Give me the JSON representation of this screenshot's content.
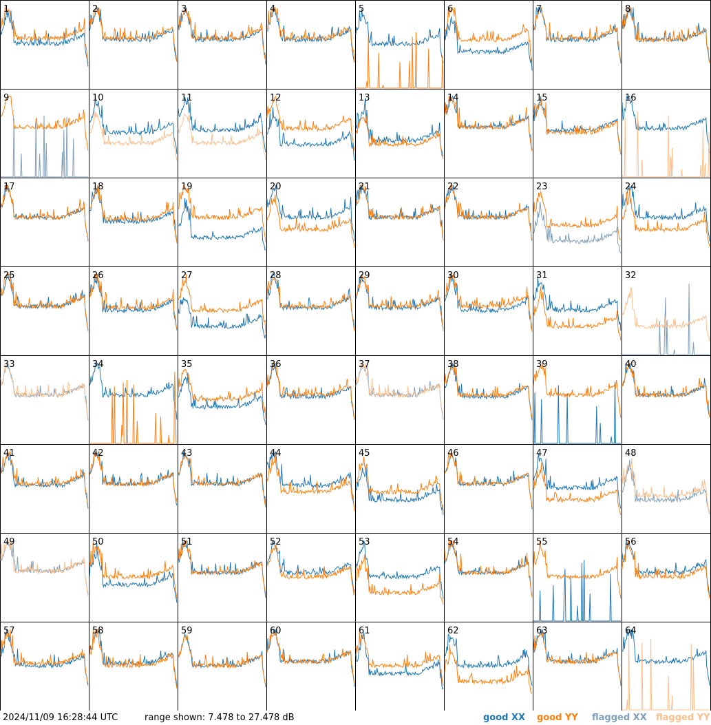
{
  "footer": {
    "timestamp": "2024/11/09 16:28:44 UTC",
    "range_text": "range shown: 7.478 to 27.478 dB"
  },
  "legend": [
    {
      "label": "good XX",
      "color": "#1f77b4"
    },
    {
      "label": "good YY",
      "color": "#ff7f0e"
    },
    {
      "label": "flagged XX",
      "color": "#7f9fba"
    },
    {
      "label": "flagged YY",
      "color": "#fbbf8e"
    }
  ],
  "chart_data": {
    "type": "line",
    "description_grid": "8x8 small multiples of antenna spectra",
    "ylim": [
      7.478,
      27.478
    ],
    "yunit": "dB",
    "panels": [
      {
        "id": "1",
        "xx": "good",
        "yy": "good",
        "xx_level": 0.55,
        "yy_level": 0.62,
        "note": "yy dips then falls at end"
      },
      {
        "id": "2",
        "xx": "good",
        "yy": "good",
        "xx_level": 0.6,
        "yy_level": 0.62
      },
      {
        "id": "3",
        "xx": "good",
        "yy": "good",
        "xx_level": 0.6,
        "yy_level": 0.62
      },
      {
        "id": "4",
        "xx": "good",
        "yy": "good",
        "xx_level": 0.6,
        "yy_level": 0.62
      },
      {
        "id": "5",
        "xx": "good",
        "yy": "good",
        "xx_level": 0.55,
        "yy_level": 0.0,
        "note": "yy near floor"
      },
      {
        "id": "6",
        "xx": "good",
        "yy": "good",
        "xx_level": 0.45,
        "yy_level": 0.6
      },
      {
        "id": "7",
        "xx": "good",
        "yy": "good",
        "xx_level": 0.6,
        "yy_level": 0.62
      },
      {
        "id": "8",
        "xx": "good",
        "yy": "good",
        "xx_level": 0.6,
        "yy_level": 0.6
      },
      {
        "id": "9",
        "xx": "flagged",
        "yy": "good",
        "xx_level": 0.0,
        "yy_level": 0.62
      },
      {
        "id": "10",
        "xx": "good",
        "yy": "flagged",
        "xx_level": 0.55,
        "yy_level": 0.42
      },
      {
        "id": "11",
        "xx": "good",
        "yy": "flagged",
        "xx_level": 0.58,
        "yy_level": 0.42
      },
      {
        "id": "12",
        "xx": "good",
        "yy": "good",
        "xx_level": 0.4,
        "yy_level": 0.6
      },
      {
        "id": "13",
        "xx": "good",
        "yy": "good",
        "xx_level": 0.45,
        "yy_level": 0.4
      },
      {
        "id": "14",
        "xx": "good",
        "yy": "good",
        "xx_level": 0.62,
        "yy_level": 0.62
      },
      {
        "id": "15",
        "xx": "good",
        "yy": "good",
        "xx_level": 0.58,
        "yy_level": 0.55
      },
      {
        "id": "16",
        "xx": "good",
        "yy": "flagged",
        "xx_level": 0.6,
        "yy_level": 0.0
      },
      {
        "id": "17",
        "xx": "good",
        "yy": "good",
        "xx_level": 0.6,
        "yy_level": 0.6
      },
      {
        "id": "18",
        "xx": "good",
        "yy": "good",
        "xx_level": 0.55,
        "yy_level": 0.58
      },
      {
        "id": "19",
        "xx": "good",
        "yy": "good",
        "xx_level": 0.35,
        "yy_level": 0.6
      },
      {
        "id": "20",
        "xx": "good",
        "yy": "good",
        "xx_level": 0.6,
        "yy_level": 0.45
      },
      {
        "id": "21",
        "xx": "good",
        "yy": "good",
        "xx_level": 0.6,
        "yy_level": 0.6
      },
      {
        "id": "22",
        "xx": "good",
        "yy": "good",
        "xx_level": 0.6,
        "yy_level": 0.6
      },
      {
        "id": "23",
        "xx": "flagged",
        "yy": "good",
        "xx_level": 0.3,
        "yy_level": 0.5
      },
      {
        "id": "24",
        "xx": "good",
        "yy": "good",
        "xx_level": 0.6,
        "yy_level": 0.45
      },
      {
        "id": "25",
        "xx": "good",
        "yy": "good",
        "xx_level": 0.6,
        "yy_level": 0.6
      },
      {
        "id": "26",
        "xx": "good",
        "yy": "good",
        "xx_level": 0.55,
        "yy_level": 0.58
      },
      {
        "id": "27",
        "xx": "good",
        "yy": "good",
        "xx_level": 0.35,
        "yy_level": 0.55
      },
      {
        "id": "28",
        "xx": "good",
        "yy": "good",
        "xx_level": 0.58,
        "yy_level": 0.6
      },
      {
        "id": "29",
        "xx": "good",
        "yy": "good",
        "xx_level": 0.58,
        "yy_level": 0.6
      },
      {
        "id": "30",
        "xx": "good",
        "yy": "good",
        "xx_level": 0.55,
        "yy_level": 0.6
      },
      {
        "id": "31",
        "xx": "good",
        "yy": "good",
        "xx_level": 0.55,
        "yy_level": 0.35
      },
      {
        "id": "32",
        "xx": "flagged",
        "yy": "flagged",
        "xx_level": 0.0,
        "yy_level": 0.35
      },
      {
        "id": "33",
        "xx": "flagged",
        "yy": "flagged",
        "xx_level": 0.6,
        "yy_level": 0.6
      },
      {
        "id": "34",
        "xx": "good",
        "yy": "good",
        "xx_level": 0.6,
        "yy_level": 0.0
      },
      {
        "id": "35",
        "xx": "good",
        "yy": "good",
        "xx_level": 0.45,
        "yy_level": 0.55
      },
      {
        "id": "36",
        "xx": "good",
        "yy": "good",
        "xx_level": 0.58,
        "yy_level": 0.6
      },
      {
        "id": "37",
        "xx": "flagged",
        "yy": "flagged",
        "xx_level": 0.6,
        "yy_level": 0.6
      },
      {
        "id": "38",
        "xx": "good",
        "yy": "good",
        "xx_level": 0.58,
        "yy_level": 0.6
      },
      {
        "id": "39",
        "xx": "good",
        "yy": "good",
        "xx_level": 0.0,
        "yy_level": 0.6
      },
      {
        "id": "40",
        "xx": "good",
        "yy": "good",
        "xx_level": 0.6,
        "yy_level": 0.6
      },
      {
        "id": "41",
        "xx": "good",
        "yy": "good",
        "xx_level": 0.58,
        "yy_level": 0.6
      },
      {
        "id": "42",
        "xx": "good",
        "yy": "good",
        "xx_level": 0.6,
        "yy_level": 0.6
      },
      {
        "id": "43",
        "xx": "good",
        "yy": "good",
        "xx_level": 0.6,
        "yy_level": 0.6
      },
      {
        "id": "44",
        "xx": "good",
        "yy": "good",
        "xx_level": 0.58,
        "yy_level": 0.5
      },
      {
        "id": "45",
        "xx": "good",
        "yy": "good",
        "xx_level": 0.4,
        "yy_level": 0.5
      },
      {
        "id": "46",
        "xx": "good",
        "yy": "good",
        "xx_level": 0.6,
        "yy_level": 0.6
      },
      {
        "id": "47",
        "xx": "good",
        "yy": "good",
        "xx_level": 0.55,
        "yy_level": 0.4
      },
      {
        "id": "48",
        "xx": "flagged",
        "yy": "flagged",
        "xx_level": 0.4,
        "yy_level": 0.45
      },
      {
        "id": "49",
        "xx": "flagged",
        "yy": "flagged",
        "xx_level": 0.62,
        "yy_level": 0.62
      },
      {
        "id": "50",
        "xx": "good",
        "yy": "good",
        "xx_level": 0.45,
        "yy_level": 0.55
      },
      {
        "id": "51",
        "xx": "good",
        "yy": "good",
        "xx_level": 0.6,
        "yy_level": 0.6
      },
      {
        "id": "52",
        "xx": "good",
        "yy": "good",
        "xx_level": 0.6,
        "yy_level": 0.55
      },
      {
        "id": "53",
        "xx": "good",
        "yy": "good",
        "xx_level": 0.55,
        "yy_level": 0.35
      },
      {
        "id": "54",
        "xx": "good",
        "yy": "good",
        "xx_level": 0.6,
        "yy_level": 0.6
      },
      {
        "id": "55",
        "xx": "good",
        "yy": "good",
        "xx_level": 0.0,
        "yy_level": 0.55
      },
      {
        "id": "56",
        "xx": "good",
        "yy": "good",
        "xx_level": 0.6,
        "yy_level": 0.55
      },
      {
        "id": "57",
        "xx": "good",
        "yy": "good",
        "xx_level": 0.55,
        "yy_level": 0.58
      },
      {
        "id": "58",
        "xx": "good",
        "yy": "good",
        "xx_level": 0.58,
        "yy_level": 0.55
      },
      {
        "id": "59",
        "xx": "good",
        "yy": "good",
        "xx_level": 0.55,
        "yy_level": 0.55
      },
      {
        "id": "60",
        "xx": "good",
        "yy": "good",
        "xx_level": 0.6,
        "yy_level": 0.6
      },
      {
        "id": "61",
        "xx": "good",
        "yy": "good",
        "xx_level": 0.45,
        "yy_level": 0.55
      },
      {
        "id": "62",
        "xx": "good",
        "yy": "good",
        "xx_level": 0.55,
        "yy_level": 0.35
      },
      {
        "id": "63",
        "xx": "good",
        "yy": "good",
        "xx_level": 0.6,
        "yy_level": 0.6
      },
      {
        "id": "64",
        "xx": "good",
        "yy": "flagged",
        "xx_level": 0.6,
        "yy_level": 0.0
      }
    ]
  }
}
